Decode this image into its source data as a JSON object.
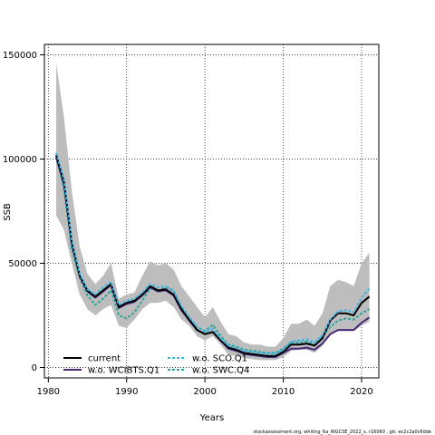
{
  "chart_data": {
    "type": "line",
    "xlabel": "Years",
    "ylabel": "SSB",
    "xlim": [
      1979.5,
      2022.2
    ],
    "ylim": [
      -5000,
      155000
    ],
    "xticks": [
      1980,
      1990,
      2000,
      2010,
      2020
    ],
    "yticks": [
      0,
      50000,
      100000,
      150000
    ],
    "grid": "dotted",
    "legend_position": "bottom-left",
    "footer": "stockassessment.org,  whiting_6a_WGCSE_2022_s, r16060 ,  git: ec2c2a0c6dde",
    "x": [
      1981,
      1982,
      1983,
      1984,
      1985,
      1986,
      1987,
      1988,
      1989,
      1990,
      1991,
      1992,
      1993,
      1994,
      1995,
      1996,
      1997,
      1998,
      1999,
      2000,
      2001,
      2002,
      2003,
      2004,
      2005,
      2006,
      2007,
      2008,
      2009,
      2010,
      2011,
      2012,
      2013,
      2014,
      2015,
      2016,
      2017,
      2018,
      2019,
      2020,
      2021
    ],
    "confidence_band": {
      "upper": [
        146000,
        120000,
        85000,
        58000,
        45000,
        40000,
        44000,
        50000,
        33000,
        35000,
        36000,
        44000,
        51000,
        49000,
        50000,
        47000,
        39000,
        34000,
        29000,
        24000,
        29000,
        22000,
        16000,
        15000,
        12000,
        11000,
        11000,
        10000,
        10000,
        14000,
        21000,
        21000,
        23000,
        20000,
        26000,
        39000,
        42000,
        41000,
        39000,
        50000,
        55000
      ],
      "lower": [
        73000,
        66000,
        50000,
        35000,
        28000,
        25000,
        28000,
        30000,
        20000,
        19000,
        23000,
        28000,
        31000,
        31000,
        32000,
        29000,
        23000,
        20000,
        15000,
        13000,
        15000,
        11000,
        6000,
        5500,
        4500,
        4000,
        3500,
        3500,
        3500,
        5000,
        8000,
        8500,
        8500,
        7000,
        10500,
        16000,
        17500,
        17500,
        17500,
        20000,
        22000
      ]
    },
    "series": [
      {
        "name": "current",
        "color": "#000000",
        "dash": "solid",
        "values": [
          102000,
          89000,
          60000,
          44000,
          37000,
          34000,
          37000,
          40000,
          29000,
          31000,
          32000,
          35000,
          39000,
          37000,
          37500,
          35000,
          28000,
          23000,
          18000,
          16000,
          17000,
          13000,
          9500,
          8500,
          7000,
          6500,
          6000,
          5500,
          5500,
          7500,
          11000,
          11000,
          11500,
          10500,
          14000,
          22500,
          26000,
          26000,
          25000,
          31000,
          34000
        ]
      },
      {
        "name": "w.o. WCIBTS.Q1",
        "color": "#482878",
        "dash": "solid",
        "values": [
          101000,
          88000,
          59500,
          44000,
          36500,
          33500,
          36500,
          39500,
          28500,
          30500,
          31500,
          34500,
          38500,
          36500,
          37000,
          34500,
          27500,
          22500,
          18000,
          16000,
          17000,
          13000,
          9000,
          8000,
          6500,
          6000,
          5500,
          5000,
          5000,
          7000,
          9000,
          9000,
          9500,
          8500,
          11500,
          16000,
          18000,
          18000,
          18000,
          21500,
          24000
        ]
      },
      {
        "name": "w.o. SCO.Q1",
        "color": "#3BB4E8",
        "dash": "dashed",
        "values": [
          103000,
          90000,
          61000,
          45000,
          37500,
          35000,
          38500,
          41000,
          30000,
          32000,
          33000,
          36000,
          40000,
          38500,
          39000,
          36500,
          29500,
          24000,
          19500,
          17000,
          18500,
          14000,
          10500,
          9500,
          8000,
          7500,
          7000,
          6500,
          6500,
          8500,
          12500,
          13000,
          13500,
          12000,
          15500,
          23000,
          27000,
          27500,
          26500,
          33500,
          38000
        ]
      },
      {
        "name": "w.o. SWC.Q4",
        "color": "#2AA59A",
        "dash": "dashed",
        "values": [
          101000,
          86000,
          57000,
          43000,
          34500,
          30000,
          33000,
          37000,
          25000,
          23500,
          26500,
          32000,
          38000,
          36500,
          38500,
          37000,
          29000,
          24000,
          19500,
          17500,
          20500,
          15000,
          11000,
          10000,
          8500,
          8000,
          7500,
          7000,
          7000,
          9000,
          12000,
          12000,
          12500,
          11000,
          15000,
          19500,
          22500,
          23500,
          23000,
          26000,
          28000
        ]
      }
    ]
  }
}
